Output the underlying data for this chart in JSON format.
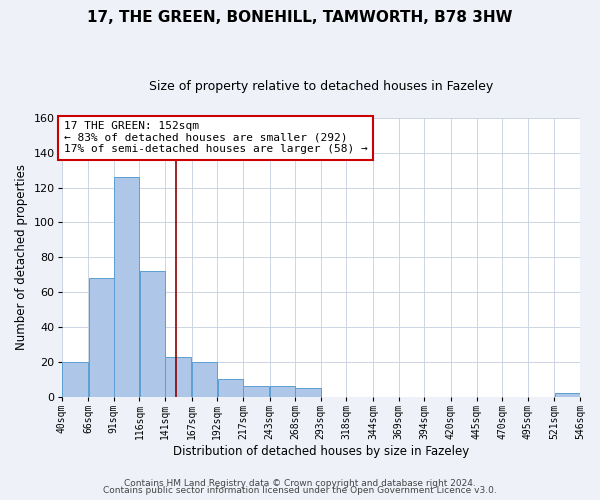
{
  "title": "17, THE GREEN, BONEHILL, TAMWORTH, B78 3HW",
  "subtitle": "Size of property relative to detached houses in Fazeley",
  "xlabel": "Distribution of detached houses by size in Fazeley",
  "ylabel": "Number of detached properties",
  "bin_edges": [
    40,
    66,
    91,
    116,
    141,
    167,
    192,
    217,
    243,
    268,
    293,
    318,
    344,
    369,
    394,
    420,
    445,
    470,
    495,
    521,
    546
  ],
  "bin_labels": [
    "40sqm",
    "66sqm",
    "91sqm",
    "116sqm",
    "141sqm",
    "167sqm",
    "192sqm",
    "217sqm",
    "243sqm",
    "268sqm",
    "293sqm",
    "318sqm",
    "344sqm",
    "369sqm",
    "394sqm",
    "420sqm",
    "445sqm",
    "470sqm",
    "495sqm",
    "521sqm",
    "546sqm"
  ],
  "counts": [
    20,
    68,
    126,
    72,
    23,
    20,
    10,
    6,
    6,
    5,
    0,
    0,
    0,
    0,
    0,
    0,
    0,
    0,
    0,
    2
  ],
  "bar_color": "#aec6e8",
  "bar_edge_color": "#5a9fd4",
  "property_size": 152,
  "vline_color": "#8b0000",
  "annotation_text": "17 THE GREEN: 152sqm\n← 83% of detached houses are smaller (292)\n17% of semi-detached houses are larger (58) →",
  "annotation_box_color": "#ffffff",
  "annotation_box_edge_color": "#cc0000",
  "ylim": [
    0,
    160
  ],
  "yticks": [
    0,
    20,
    40,
    60,
    80,
    100,
    120,
    140,
    160
  ],
  "footer_line1": "Contains HM Land Registry data © Crown copyright and database right 2024.",
  "footer_line2": "Contains public sector information licensed under the Open Government Licence v3.0.",
  "background_color": "#eef2f8",
  "plot_background_color": "#ffffff",
  "grid_color": "#c5cfe0",
  "title_fontsize": 11,
  "subtitle_fontsize": 9,
  "axis_label_fontsize": 8.5,
  "tick_fontsize": 7,
  "annotation_fontsize": 8,
  "footer_fontsize": 6.5
}
